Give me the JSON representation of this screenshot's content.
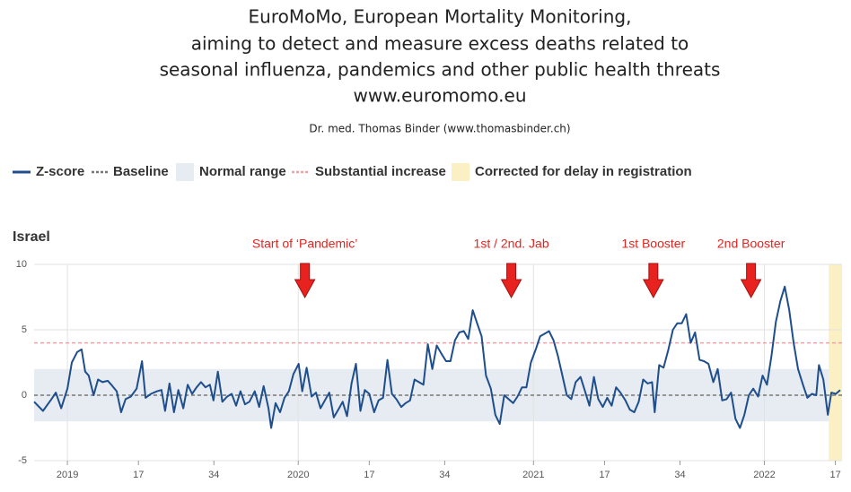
{
  "chart_data": {
    "type": "line",
    "title_lines": [
      "EuroMoMo, European Mortality Monitoring,",
      "aiming to detect and measure excess deaths related to",
      "seasonal influenza, pandemics and other public health threats",
      "www.euromomo.eu"
    ],
    "author": "Dr. med. Thomas Binder (www.thomasbinder.ch)",
    "country": "Israel",
    "legend": {
      "zscore": "Z-score",
      "baseline": "Baseline",
      "normal_range": "Normal range",
      "substantial_increase": "Substantial increase",
      "delay": "Corrected for delay in registration"
    },
    "baseline": 0,
    "normal_range": [
      -2,
      2
    ],
    "substantial_increase": 4,
    "delay_correction_start": 171.5,
    "colors": {
      "line": "#1f4e8c",
      "baseline": "#777777",
      "normal_range": "#e6ecf2",
      "substantial_increase": "#f2a0a8",
      "delay": "#fbf0c4",
      "annotation": "#e8231f"
    },
    "annotations": [
      {
        "text": "Start of ‘Pandemic’",
        "x": 53.5
      },
      {
        "text": "1st / 2nd. Jab",
        "x": 100
      },
      {
        "text": "1st Booster",
        "x": 132
      },
      {
        "text": "2nd Booster",
        "x": 154
      }
    ],
    "xlim": [
      -7.5,
      174.5
    ],
    "xticks": [
      {
        "value": 0,
        "label": "2019"
      },
      {
        "value": 16,
        "label": "17"
      },
      {
        "value": 33,
        "label": "34"
      },
      {
        "value": 52,
        "label": "2020"
      },
      {
        "value": 68,
        "label": "17"
      },
      {
        "value": 85,
        "label": "34"
      },
      {
        "value": 105,
        "label": "2021"
      },
      {
        "value": 121,
        "label": "17"
      },
      {
        "value": 138,
        "label": "34"
      },
      {
        "value": 157,
        "label": "2022"
      },
      {
        "value": 173,
        "label": "17"
      }
    ],
    "ylim": [
      -5,
      10
    ],
    "yticks": [
      -5,
      0,
      5,
      10
    ],
    "grid": true,
    "x": [
      -7.5,
      -5.5,
      -3.6,
      -2.6,
      -1.4,
      0,
      1,
      2.2,
      3.2,
      4,
      4.8,
      5.9,
      6.9,
      7.9,
      9.1,
      9.9,
      11.1,
      12.1,
      13.1,
      14.3,
      15.6,
      16.8,
      17.6,
      18.8,
      20.2,
      21.2,
      22,
      23,
      24,
      25,
      26.1,
      27.1,
      28.1,
      29.1,
      30.1,
      31.1,
      32.1,
      32.9,
      33.9,
      34.9,
      36,
      37,
      38,
      39,
      40,
      41,
      42.2,
      43.2,
      44.2,
      45.3,
      45.9,
      46.9,
      47.9,
      48.9,
      49.9,
      50.9,
      52.1,
      52.9,
      53.9,
      55,
      56,
      57,
      58,
      59,
      60,
      61.2,
      62,
      63,
      64,
      65,
      66,
      67,
      68,
      69.1,
      70.1,
      71.1,
      72.1,
      73.1,
      74.1,
      75.2,
      76.2,
      77.2,
      78.2,
      79.2,
      80.2,
      81.2,
      82.2,
      83.2,
      84.2,
      85.3,
      86.3,
      87.3,
      88.3,
      89.3,
      90.3,
      91.3,
      92.3,
      93.3,
      94.3,
      95.4,
      96.4,
      97.4,
      98.4,
      99.4,
      100.4,
      101.4,
      102.4,
      103.4,
      104.4,
      105.5,
      106.5,
      107.5,
      108.5,
      109.5,
      110.5,
      111.5,
      112.5,
      113.5,
      114.5,
      115.6,
      116.6,
      117.6,
      118.6,
      119.6,
      120.6,
      121.6,
      122.6,
      123.6,
      124.6,
      125.7,
      126.7,
      127.7,
      128.7,
      129.7,
      130.7,
      131.7,
      132.3,
      133.3,
      134.3,
      135.4,
      136.4,
      137.4,
      138.4,
      139.4,
      140.4,
      141.4,
      142.4,
      143.4,
      144.4,
      145.5,
      146.5,
      147.5,
      148.5,
      149.5,
      150.5,
      151.5,
      152.5,
      153.5,
      154.5,
      155.6,
      156.6,
      157.6,
      158.6,
      159.6,
      160.6,
      161.6,
      162.6,
      163.6,
      164.6,
      165.7,
      166.7,
      167.7,
      168.7,
      169.3,
      170.3,
      171.3,
      172.1,
      173.1,
      174.1
    ],
    "series": [
      {
        "name": "Z-score",
        "color": "#1f4e8c",
        "values": [
          -0.5,
          -1.2,
          -0.3,
          0.2,
          -1,
          0.5,
          2.5,
          3.3,
          3.5,
          1.8,
          1.5,
          0,
          1.2,
          1,
          1.1,
          0.8,
          0.3,
          -1.3,
          -0.3,
          -0.1,
          0.5,
          2.6,
          -0.2,
          0.1,
          0.3,
          0.4,
          -1.2,
          0.9,
          -1.3,
          0.4,
          -1,
          0.8,
          0.1,
          0.6,
          1,
          0.6,
          0.8,
          -0.4,
          1.8,
          -0.5,
          -0.1,
          0.1,
          -0.8,
          0.3,
          -0.7,
          -0.5,
          0.3,
          -0.9,
          0.7,
          -1,
          -2.5,
          -0.6,
          -1.3,
          -0.2,
          0.3,
          1.6,
          2.4,
          0.3,
          2.1,
          -0.1,
          0.2,
          -1,
          -0.4,
          0.2,
          -1.7,
          -1,
          -0.5,
          -1.6,
          0.9,
          2.4,
          -1.2,
          0.4,
          0.1,
          -1.3,
          -0.4,
          -0.2,
          2.7,
          0.1,
          -0.3,
          -0.9,
          -0.6,
          -0.4,
          1.2,
          1,
          0.8,
          3.9,
          2,
          3.8,
          3.2,
          2.6,
          2.6,
          4.2,
          4.8,
          4.9,
          4.3,
          6.5,
          5.5,
          4.5,
          1.5,
          0.5,
          -1.5,
          -2.2,
          0,
          -0.3,
          -0.6,
          -0.1,
          0.6,
          0.6,
          2.5,
          3.5,
          4.5,
          4.7,
          4.9,
          4.2,
          3,
          1.5,
          0,
          -0.3,
          1,
          1.4,
          0.3,
          -0.8,
          1.4,
          -0.3,
          -0.9,
          -0.2,
          -0.8,
          0.6,
          0.2,
          -0.4,
          -1.1,
          -1.3,
          -0.5,
          1.2,
          0.9,
          1,
          -1.3,
          2.3,
          2.1,
          3.5,
          5,
          5.5,
          5.5,
          6.2,
          4,
          4.8,
          2.7,
          2.6,
          2.4,
          1,
          2,
          -0.4,
          -0.3,
          0.2,
          -1.8,
          -2.5,
          -1.5,
          0,
          0.5,
          -0.1,
          1.5,
          0.8,
          3,
          5.6,
          7.2,
          8.3,
          6.5,
          4,
          2,
          0.8,
          -0.2,
          0.1,
          0,
          2.3,
          1.2,
          -1.5,
          0.2,
          0.1,
          0.4
        ]
      }
    ]
  }
}
